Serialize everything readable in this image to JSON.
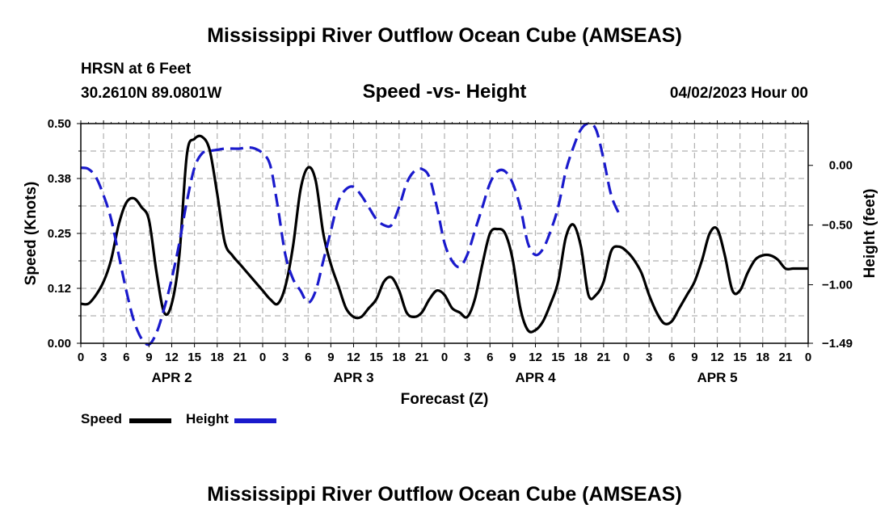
{
  "page": {
    "title_top": "Mississippi River Outflow Ocean Cube (AMSEAS)",
    "title_bottom": "Mississippi River Outflow Ocean Cube (AMSEAS)",
    "station": "HRSN at 6 Feet",
    "coords": "30.2610N  89.0801W",
    "datetime": "04/02/2023 Hour 00"
  },
  "colors": {
    "speed": "#000000",
    "height": "#1a1acc",
    "grid": "#b0b0b0"
  },
  "chart_data": {
    "type": "line",
    "title": "Speed -vs- Height",
    "xlabel": "Forecast (Z)",
    "ylabel": "Speed (Knots)",
    "ylabel_right": "Height (feet)",
    "ylim": [
      0,
      0.5
    ],
    "ylim_right": [
      -1.49,
      0.35
    ],
    "yticks": [
      0.0,
      0.125,
      0.25,
      0.375,
      0.5
    ],
    "ytick_labels": [
      "0.00",
      "0.12",
      "0.25",
      "0.38",
      "0.50"
    ],
    "yticks_right": [
      0.0,
      -0.5,
      -1.0,
      -1.49
    ],
    "ytick_labels_right": [
      "0.00",
      "−0.50",
      "−1.00",
      "−1.49"
    ],
    "xlim": [
      0,
      96
    ],
    "xtick_labels": [
      "0",
      "3",
      "6",
      "9",
      "12",
      "15",
      "18",
      "21",
      "0",
      "3",
      "6",
      "9",
      "12",
      "15",
      "18",
      "21",
      "0",
      "3",
      "6",
      "9",
      "12",
      "15",
      "18",
      "21",
      "0",
      "3",
      "6",
      "9",
      "12",
      "15",
      "18",
      "21",
      "0"
    ],
    "date_labels": [
      {
        "label": "APR 2",
        "x": 12
      },
      {
        "label": "APR 3",
        "x": 36
      },
      {
        "label": "APR 4",
        "x": 60
      },
      {
        "label": "APR 5",
        "x": 84
      }
    ],
    "series": [
      {
        "name": "Speed",
        "axis": "left",
        "x": [
          0,
          1,
          2,
          3,
          4,
          5,
          6,
          7,
          8,
          9,
          10,
          11,
          12,
          13,
          14,
          15,
          16,
          17,
          18,
          19,
          20,
          21,
          22,
          23,
          24,
          25,
          26,
          27,
          28,
          29,
          30,
          31,
          32,
          33,
          34,
          35,
          36,
          37,
          38,
          39,
          40,
          41,
          42,
          43,
          44,
          45,
          46,
          47,
          48,
          49,
          50,
          51,
          52,
          53,
          54,
          55,
          56,
          57,
          58,
          59,
          60,
          61,
          62,
          63,
          64,
          65,
          66,
          67,
          68,
          69,
          70,
          71,
          72,
          73,
          74,
          75,
          76,
          77,
          78,
          79,
          80,
          81,
          82,
          83,
          84,
          85,
          86,
          87,
          88,
          89,
          90,
          91,
          92,
          93,
          94,
          95,
          96
        ],
        "values": [
          0.09,
          0.09,
          0.11,
          0.14,
          0.19,
          0.27,
          0.32,
          0.33,
          0.31,
          0.28,
          0.16,
          0.07,
          0.09,
          0.2,
          0.43,
          0.465,
          0.47,
          0.44,
          0.34,
          0.23,
          0.2,
          0.18,
          0.16,
          0.14,
          0.12,
          0.1,
          0.09,
          0.13,
          0.22,
          0.35,
          0.4,
          0.37,
          0.25,
          0.18,
          0.13,
          0.08,
          0.06,
          0.06,
          0.08,
          0.1,
          0.14,
          0.15,
          0.12,
          0.07,
          0.06,
          0.07,
          0.1,
          0.12,
          0.11,
          0.08,
          0.07,
          0.06,
          0.1,
          0.18,
          0.25,
          0.26,
          0.25,
          0.19,
          0.08,
          0.03,
          0.03,
          0.05,
          0.09,
          0.14,
          0.24,
          0.27,
          0.22,
          0.11,
          0.11,
          0.14,
          0.21,
          0.22,
          0.21,
          0.19,
          0.16,
          0.11,
          0.07,
          0.045,
          0.05,
          0.08,
          0.11,
          0.14,
          0.19,
          0.25,
          0.26,
          0.2,
          0.12,
          0.12,
          0.16,
          0.19,
          0.2,
          0.2,
          0.19,
          0.17,
          0.17,
          0.17,
          0.17
        ]
      },
      {
        "name": "Height",
        "axis": "right",
        "x": [
          0,
          1,
          2,
          3,
          4,
          5,
          6,
          7,
          8,
          9,
          10,
          11,
          12,
          13,
          14,
          15,
          16,
          17,
          18,
          19,
          20,
          21,
          22,
          23,
          24,
          25,
          26,
          27,
          28,
          29,
          30,
          31,
          32,
          33,
          34,
          35,
          36,
          37,
          38,
          39,
          40,
          41,
          42,
          43,
          44,
          45,
          46,
          47,
          48,
          49,
          50,
          51,
          52,
          53,
          54,
          55,
          56,
          57,
          58,
          59,
          60,
          61,
          62,
          63,
          64,
          65,
          66,
          67,
          68,
          69,
          70,
          71
        ],
        "values": [
          -0.02,
          -0.03,
          -0.1,
          -0.25,
          -0.45,
          -0.75,
          -1.05,
          -1.3,
          -1.45,
          -1.5,
          -1.4,
          -1.2,
          -0.95,
          -0.65,
          -0.3,
          -0.02,
          0.1,
          0.12,
          0.13,
          0.14,
          0.14,
          0.14,
          0.15,
          0.14,
          0.1,
          0.0,
          -0.35,
          -0.75,
          -0.95,
          -1.05,
          -1.15,
          -1.05,
          -0.8,
          -0.55,
          -0.3,
          -0.2,
          -0.18,
          -0.25,
          -0.35,
          -0.45,
          -0.5,
          -0.5,
          -0.35,
          -0.15,
          -0.05,
          -0.03,
          -0.1,
          -0.35,
          -0.65,
          -0.8,
          -0.85,
          -0.75,
          -0.55,
          -0.35,
          -0.15,
          -0.05,
          -0.05,
          -0.15,
          -0.35,
          -0.65,
          -0.75,
          -0.7,
          -0.55,
          -0.35,
          -0.05,
          0.15,
          0.3,
          0.35,
          0.3,
          0.05,
          -0.25,
          -0.4
        ]
      }
    ]
  },
  "legend": {
    "speed_label": "Speed",
    "height_label": "Height"
  }
}
